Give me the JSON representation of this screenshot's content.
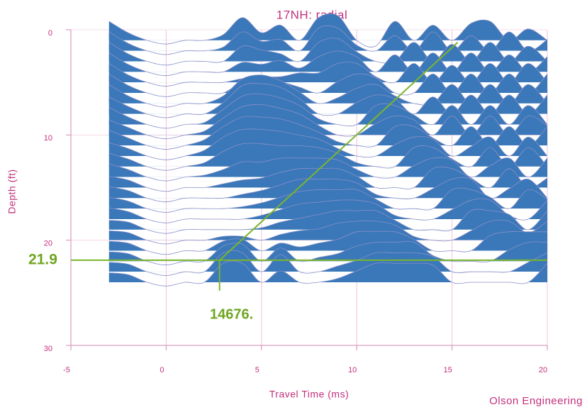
{
  "chart_data": {
    "type": "wiggle",
    "title": "17NH: radial",
    "x_label": "Travel Time (ms)",
    "y_label": "Depth (ft)",
    "credit": "Olson Engineering",
    "xlim": [
      -5,
      20
    ],
    "ylim": [
      30,
      0
    ],
    "xticks": [
      -5,
      0,
      5,
      10,
      15,
      20
    ],
    "yticks": [
      0,
      10,
      20,
      30
    ],
    "grid": true,
    "fill_color": "#3b78b9",
    "trace_color": "#8a8fc8",
    "x": [
      -3,
      -2,
      -1,
      0,
      1,
      2,
      3,
      4,
      5,
      6,
      7,
      8,
      9,
      10,
      11,
      12,
      13,
      14,
      15,
      16,
      17,
      18,
      19,
      20
    ],
    "series": [
      {
        "depth": 1,
        "values": [
          1,
          0.4,
          0,
          -0.2,
          0,
          0,
          0.3,
          1.2,
          0.4,
          0.8,
          0,
          1.2,
          1.3,
          0,
          -0.3,
          1,
          0,
          0.8,
          0,
          0.9,
          1,
          0,
          0.6,
          0
        ]
      },
      {
        "depth": 2,
        "values": [
          1,
          0.4,
          0,
          -0.2,
          0,
          0,
          0.2,
          1,
          0.5,
          0.6,
          0,
          1.2,
          1.2,
          0.3,
          0,
          0.8,
          0,
          1,
          0,
          0.8,
          0,
          1,
          0,
          0.6
        ]
      },
      {
        "depth": 3,
        "values": [
          1,
          0.4,
          0,
          -0.2,
          0,
          0,
          0,
          0.8,
          0.6,
          0.4,
          0,
          1,
          1.2,
          0.5,
          0,
          0,
          1,
          0,
          0.9,
          0,
          1,
          0,
          0.8,
          0
        ]
      },
      {
        "depth": 4,
        "values": [
          1,
          0.4,
          0,
          -0.2,
          0,
          0,
          0,
          0.5,
          0.4,
          0.6,
          0.2,
          0.8,
          1.1,
          0.8,
          0,
          0.9,
          0,
          1,
          0,
          1,
          0,
          0.9,
          0,
          0.8
        ]
      },
      {
        "depth": 5,
        "values": [
          1,
          0.4,
          0,
          -0.2,
          0,
          0,
          0,
          0.2,
          0.3,
          0.3,
          0.5,
          0.5,
          1,
          1,
          0.3,
          0,
          1,
          0,
          0.9,
          0,
          1,
          0,
          1,
          0
        ]
      },
      {
        "depth": 6,
        "values": [
          1,
          0.4,
          0,
          -0.2,
          0,
          0,
          0,
          0.6,
          0.8,
          0.6,
          0.3,
          0,
          0.6,
          1,
          0.8,
          0,
          0,
          1,
          0,
          1,
          0,
          1,
          0,
          1
        ]
      },
      {
        "depth": 7,
        "values": [
          1,
          0.4,
          0,
          -0.2,
          0,
          0,
          0.4,
          1.3,
          1.5,
          1.2,
          0.6,
          0,
          0.3,
          0.8,
          1,
          0.4,
          0,
          0,
          1,
          0,
          1,
          0,
          1,
          0
        ]
      },
      {
        "depth": 8,
        "values": [
          0.9,
          0.4,
          0,
          -0.2,
          0,
          0,
          0.6,
          1.5,
          1.6,
          1.4,
          0.8,
          0,
          0,
          0.6,
          1,
          0.8,
          0,
          0.9,
          0,
          1,
          0,
          1,
          0,
          1
        ]
      },
      {
        "depth": 9,
        "values": [
          0.9,
          0.4,
          0,
          -0.2,
          0,
          0.1,
          0.8,
          1.5,
          1.6,
          1.4,
          1,
          0.3,
          0,
          0,
          1,
          1,
          0.5,
          0,
          1,
          0,
          1,
          0,
          1,
          0
        ]
      },
      {
        "depth": 10,
        "values": [
          0.8,
          0.4,
          0,
          -0.2,
          0,
          0.2,
          0.9,
          1.5,
          1.6,
          1.4,
          1.1,
          0.5,
          0,
          0,
          0.6,
          1,
          0.8,
          0,
          1,
          0,
          1,
          0,
          1,
          0.5
        ]
      },
      {
        "depth": 11,
        "values": [
          0.8,
          0.4,
          0,
          -0.2,
          0,
          0.3,
          1,
          1.5,
          1.5,
          1.4,
          1.1,
          0.7,
          0.2,
          0,
          0,
          1,
          1,
          0.4,
          0,
          1,
          0,
          1,
          0,
          1
        ]
      },
      {
        "depth": 12,
        "values": [
          0.7,
          0.4,
          0,
          -0.2,
          0,
          0.3,
          1,
          1.4,
          1.4,
          1.3,
          1.1,
          0.9,
          0.4,
          0,
          0,
          0.6,
          1,
          0.9,
          0,
          0.5,
          1,
          0,
          1,
          0
        ]
      },
      {
        "depth": 13,
        "values": [
          0.7,
          0.4,
          0,
          -0.2,
          0,
          0.2,
          0.8,
          1.2,
          1.2,
          1.1,
          1.1,
          1,
          0.7,
          0.2,
          0,
          0,
          1,
          1,
          0.4,
          0,
          1,
          0,
          1,
          0
        ]
      },
      {
        "depth": 14,
        "values": [
          0.7,
          0.4,
          0,
          -0.2,
          0,
          0.1,
          0.4,
          0.8,
          0.8,
          1,
          1,
          1,
          0.9,
          0.4,
          0,
          0,
          0.6,
          1,
          0.9,
          0,
          0.6,
          1,
          0,
          1
        ]
      },
      {
        "depth": 15,
        "values": [
          0.6,
          0.4,
          0,
          -0.2,
          0,
          0,
          0.2,
          0.4,
          0.5,
          0.8,
          1,
          1,
          1,
          0.6,
          0,
          0,
          0,
          1,
          1,
          0.5,
          0,
          1,
          0,
          0.5
        ]
      },
      {
        "depth": 16,
        "values": [
          0.6,
          0.4,
          0,
          -0.2,
          0,
          0,
          0,
          0.2,
          0.4,
          0.7,
          1,
          1,
          1,
          0.8,
          0.2,
          0,
          0,
          0.5,
          1,
          1,
          0,
          0.5,
          1,
          0
        ]
      },
      {
        "depth": 17,
        "values": [
          0.6,
          0.4,
          0,
          -0.2,
          0,
          0,
          0,
          0.1,
          0.3,
          0.6,
          0.9,
          1,
          1,
          1,
          0.5,
          0,
          0,
          0,
          1,
          1,
          0.6,
          0,
          1,
          0.5
        ]
      },
      {
        "depth": 18,
        "values": [
          0.6,
          0.4,
          0,
          -0.2,
          0,
          0,
          0,
          0,
          0.2,
          0.5,
          0.8,
          0.9,
          1,
          1,
          0.8,
          0.2,
          0,
          0,
          0.5,
          1,
          1,
          0.2,
          0,
          1
        ]
      },
      {
        "depth": 19,
        "values": [
          0.5,
          0.4,
          0,
          -0.2,
          0,
          0,
          0,
          0,
          0.1,
          0.4,
          0.6,
          0.8,
          1,
          1,
          1,
          0.5,
          0,
          0,
          0,
          1,
          1,
          0.8,
          0,
          1
        ]
      },
      {
        "depth": 20,
        "values": [
          0.5,
          0.4,
          0,
          -0.2,
          0,
          0,
          0.2,
          0.2,
          0,
          0.3,
          0.5,
          0.6,
          0.9,
          1,
          1,
          0.8,
          0.2,
          0,
          0,
          0.5,
          1,
          1,
          0.4,
          1
        ]
      },
      {
        "depth": 21,
        "values": [
          0.5,
          0.4,
          0,
          -0.2,
          0,
          0,
          0.5,
          0.6,
          0,
          0.4,
          0.2,
          0.4,
          0.6,
          1,
          1,
          1,
          0.6,
          0,
          0,
          0,
          0.8,
          1,
          1,
          1
        ]
      },
      {
        "depth": 22,
        "values": [
          0.5,
          0.4,
          0,
          -0.2,
          0,
          0,
          0.8,
          0.9,
          0,
          0.7,
          0,
          0.2,
          0.4,
          0.8,
          1,
          1,
          1,
          0.3,
          0,
          0,
          0,
          0.6,
          1,
          1
        ]
      },
      {
        "depth": 23,
        "values": [
          0.5,
          0.4,
          0,
          -0.2,
          0,
          0,
          1,
          1,
          0,
          0.9,
          0,
          0,
          0.3,
          0.6,
          1,
          1,
          1,
          0.8,
          0,
          0,
          0,
          0,
          0.5,
          1
        ]
      },
      {
        "depth": 24,
        "values": [
          0.5,
          0.4,
          0,
          -0.2,
          0,
          0,
          1,
          1,
          0,
          0.6,
          0,
          0,
          0.2,
          0.6,
          1,
          1,
          1,
          0.9,
          0,
          0,
          0,
          0,
          0,
          1
        ]
      }
    ],
    "pick_lines": {
      "color": "#7ab52c",
      "lines": [
        {
          "x": [
            -5,
            20
          ],
          "y": [
            21.9,
            21.9
          ]
        },
        {
          "x": [
            2.8,
            15.3
          ],
          "y": [
            21.9,
            1.2
          ]
        },
        {
          "x": [
            2.8,
            2.8
          ],
          "y": [
            21.9,
            24.8
          ]
        }
      ]
    },
    "depth_label": {
      "value": 21.9,
      "label": "21.9"
    },
    "velocity_label": "14676."
  }
}
